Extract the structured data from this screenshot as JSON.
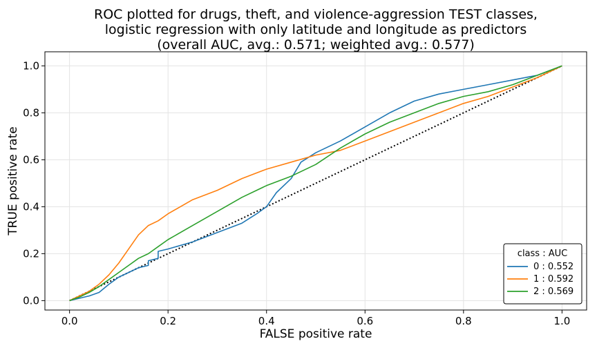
{
  "chart_data": {
    "type": "line",
    "title_lines": [
      "ROC plotted for drugs, theft, and violence-aggression TEST classes,",
      "logistic regression with only latitude and longitude as predictors",
      "(overall AUC, avg.: 0.571; weighted avg.: 0.577)"
    ],
    "xlabel": "FALSE positive rate",
    "ylabel": "TRUE positive rate",
    "xlim": [
      -0.05,
      1.05
    ],
    "ylim": [
      -0.04,
      1.06
    ],
    "xticks": [
      0.0,
      0.2,
      0.4,
      0.6,
      0.8,
      1.0
    ],
    "xtick_labels": [
      "0.0",
      "0.2",
      "0.4",
      "0.6",
      "0.8",
      "1.0"
    ],
    "yticks": [
      0.0,
      0.2,
      0.4,
      0.6,
      0.8,
      1.0
    ],
    "ytick_labels": [
      "0.0",
      "0.2",
      "0.4",
      "0.6",
      "0.8",
      "1.0"
    ],
    "grid": true,
    "legend": {
      "title": "class : AUC",
      "placement": "lower-right"
    },
    "series": [
      {
        "name": "0 : 0.552",
        "color": "#1f77b4",
        "x": [
          0.0,
          0.02,
          0.04,
          0.06,
          0.08,
          0.1,
          0.12,
          0.14,
          0.16,
          0.16,
          0.18,
          0.18,
          0.2,
          0.25,
          0.3,
          0.35,
          0.38,
          0.4,
          0.42,
          0.45,
          0.47,
          0.5,
          0.55,
          0.6,
          0.65,
          0.7,
          0.75,
          0.8,
          0.85,
          0.9,
          0.95,
          1.0
        ],
        "y": [
          0.0,
          0.01,
          0.02,
          0.035,
          0.07,
          0.1,
          0.12,
          0.14,
          0.15,
          0.17,
          0.18,
          0.21,
          0.22,
          0.25,
          0.29,
          0.33,
          0.37,
          0.4,
          0.46,
          0.52,
          0.59,
          0.63,
          0.68,
          0.74,
          0.8,
          0.85,
          0.88,
          0.9,
          0.92,
          0.94,
          0.96,
          1.0
        ]
      },
      {
        "name": "1 : 0.592",
        "color": "#ff7f0e",
        "x": [
          0.0,
          0.02,
          0.04,
          0.06,
          0.08,
          0.1,
          0.12,
          0.14,
          0.16,
          0.18,
          0.2,
          0.25,
          0.3,
          0.35,
          0.4,
          0.45,
          0.5,
          0.55,
          0.6,
          0.65,
          0.7,
          0.75,
          0.8,
          0.85,
          0.9,
          0.95,
          1.0
        ],
        "y": [
          0.0,
          0.02,
          0.04,
          0.07,
          0.11,
          0.16,
          0.22,
          0.28,
          0.32,
          0.34,
          0.37,
          0.43,
          0.47,
          0.52,
          0.56,
          0.59,
          0.62,
          0.64,
          0.68,
          0.72,
          0.76,
          0.8,
          0.84,
          0.87,
          0.91,
          0.95,
          1.0
        ]
      },
      {
        "name": "2 : 0.569",
        "color": "#2ca02c",
        "x": [
          0.0,
          0.02,
          0.04,
          0.06,
          0.08,
          0.1,
          0.12,
          0.14,
          0.16,
          0.18,
          0.2,
          0.25,
          0.3,
          0.35,
          0.4,
          0.45,
          0.5,
          0.55,
          0.6,
          0.65,
          0.7,
          0.75,
          0.8,
          0.85,
          0.9,
          0.95,
          1.0
        ],
        "y": [
          0.0,
          0.015,
          0.035,
          0.06,
          0.09,
          0.12,
          0.15,
          0.18,
          0.2,
          0.23,
          0.26,
          0.32,
          0.38,
          0.44,
          0.49,
          0.53,
          0.58,
          0.65,
          0.71,
          0.76,
          0.8,
          0.84,
          0.87,
          0.89,
          0.92,
          0.96,
          1.0
        ]
      }
    ],
    "reference_line": {
      "x": [
        0.0,
        1.0
      ],
      "y": [
        0.0,
        1.0
      ],
      "color": "#000000",
      "style": "dotted"
    }
  }
}
